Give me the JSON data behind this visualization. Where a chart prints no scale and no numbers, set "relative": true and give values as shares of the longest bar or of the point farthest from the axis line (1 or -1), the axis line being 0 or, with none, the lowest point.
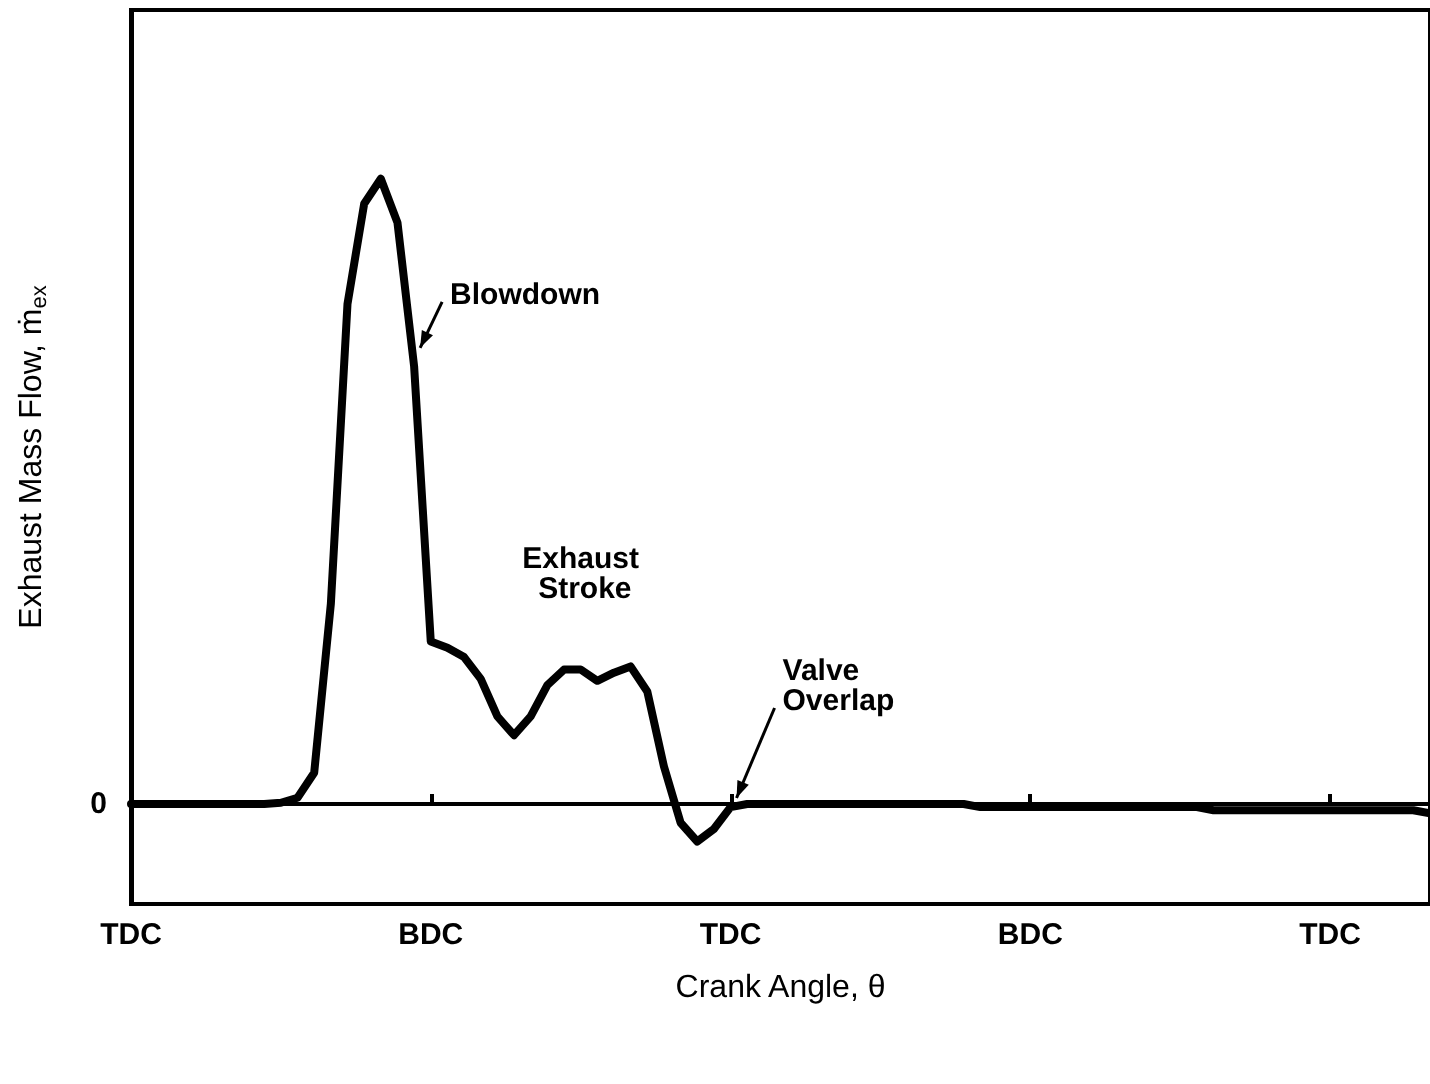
{
  "chart_data": {
    "type": "line",
    "relative": true,
    "xlabel": "Crank Angle, θ",
    "ylabel": "Exhaust Mass Flow, ṁ$_{ex}$",
    "categories": [
      "TDC",
      null,
      null,
      null,
      null,
      null,
      null,
      null,
      null,
      null,
      null,
      null,
      null,
      null,
      null,
      null,
      null,
      null,
      "BDC",
      null,
      null,
      null,
      null,
      null,
      null,
      null,
      null,
      null,
      null,
      null,
      null,
      null,
      null,
      null,
      null,
      null,
      "TDC",
      null,
      null,
      null,
      null,
      null,
      null,
      null,
      null,
      null,
      null,
      null,
      null,
      null,
      null,
      null,
      null,
      null,
      "BDC",
      null,
      null,
      null,
      null,
      null,
      null,
      null,
      null,
      null,
      null,
      null,
      null,
      null,
      null,
      null,
      null,
      null,
      "TDC",
      null,
      null,
      null,
      null,
      null,
      null
    ],
    "series": [
      {
        "color": "#000000",
        "values": [
          0,
          0,
          0,
          0,
          0,
          0,
          0,
          0,
          0,
          0.002,
          0.01,
          0.05,
          0.32,
          0.8,
          0.96,
          1,
          0.93,
          0.7,
          0.26,
          0.25,
          0.235,
          0.2,
          0.14,
          0.11,
          0.14,
          0.19,
          0.215,
          0.215,
          0.197,
          0.21,
          0.22,
          0.18,
          0.06,
          -0.03,
          -0.06,
          -0.04,
          -0.005,
          0,
          0,
          0,
          0,
          0,
          0,
          0,
          0,
          0,
          0,
          0,
          0,
          0,
          0,
          -0.005,
          -0.005,
          -0.005,
          -0.005,
          -0.005,
          -0.005,
          -0.005,
          -0.005,
          -0.005,
          -0.005,
          -0.005,
          -0.005,
          -0.005,
          -0.005,
          -0.01,
          -0.01,
          -0.01,
          -0.01,
          -0.01,
          -0.01,
          -0.01,
          -0.01,
          -0.01,
          -0.01,
          -0.01,
          -0.01,
          -0.01,
          -0.015
        ]
      }
    ],
    "annotations": [
      "Blowdown",
      "Exhaust Stroke",
      "Valve Overlap",
      "0"
    ],
    "marker": "none",
    "line_style": "solid"
  }
}
